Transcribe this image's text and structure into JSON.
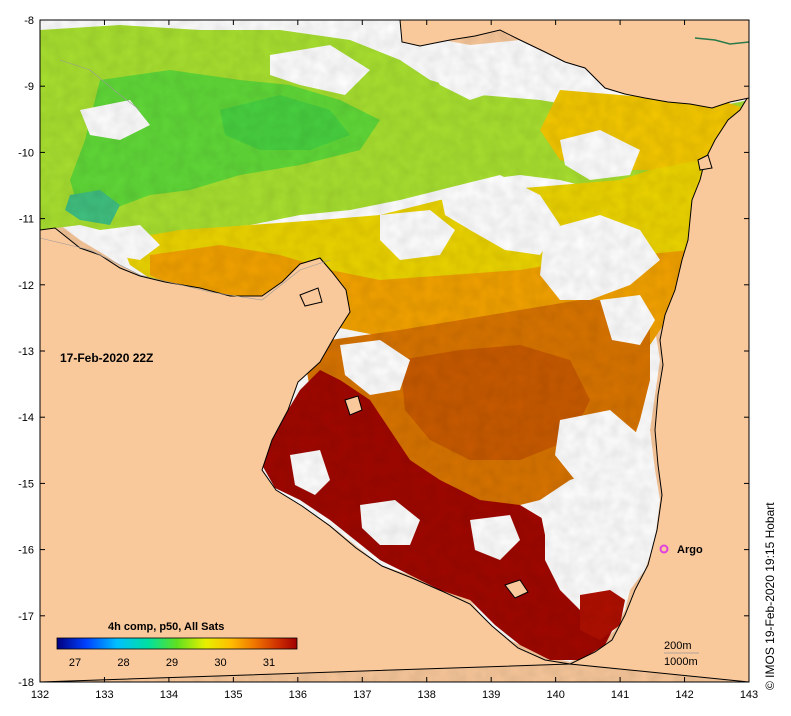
{
  "date_label": "17-Feb-2020 22Z",
  "credit": "© IMOS 19-Feb-2020 19:15 Hobart",
  "argo_label": "Argo",
  "colorbar": {
    "title": "4h comp, p50, All Sats",
    "ticks": [
      "27",
      "28",
      "29",
      "30",
      "31"
    ]
  },
  "depth_contours": [
    "200m",
    "1000m"
  ],
  "axes": {
    "x_ticks": [
      "132",
      "133",
      "134",
      "135",
      "136",
      "137",
      "138",
      "139",
      "140",
      "141",
      "142",
      "143"
    ],
    "y_ticks": [
      "-8",
      "-9",
      "-10",
      "-11",
      "-12",
      "-13",
      "-14",
      "-15",
      "-16",
      "-17",
      "-18"
    ]
  },
  "colors": {
    "land": "#f9c89b",
    "no_data": "#ffffff",
    "argo_marker": "#e040e0"
  }
}
